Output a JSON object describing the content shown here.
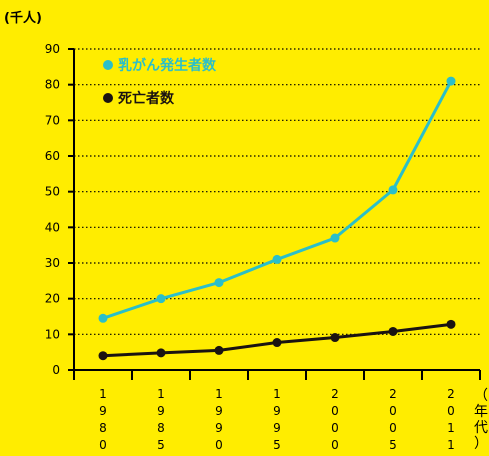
{
  "chart_data": {
    "type": "line",
    "ylabel": "(千人)",
    "xlabel": "（年代）",
    "ylim": [
      0,
      90
    ],
    "yticks": [
      0,
      10,
      20,
      30,
      40,
      50,
      60,
      70,
      80,
      90
    ],
    "categories": [
      "1980",
      "1985",
      "1990",
      "1995",
      "2000",
      "2005",
      "2011"
    ],
    "grid": "horizontal-dotted",
    "legend_position": "top-left",
    "series": [
      {
        "name": "乳がん発生者数",
        "color": "#2BBFC9",
        "values": [
          14.5,
          20,
          24.5,
          31,
          37,
          50.5,
          81
        ]
      },
      {
        "name": "死亡者数",
        "color": "#1A1311",
        "values": [
          4,
          4.8,
          5.5,
          7.7,
          9.1,
          10.8,
          12.8
        ]
      }
    ]
  }
}
